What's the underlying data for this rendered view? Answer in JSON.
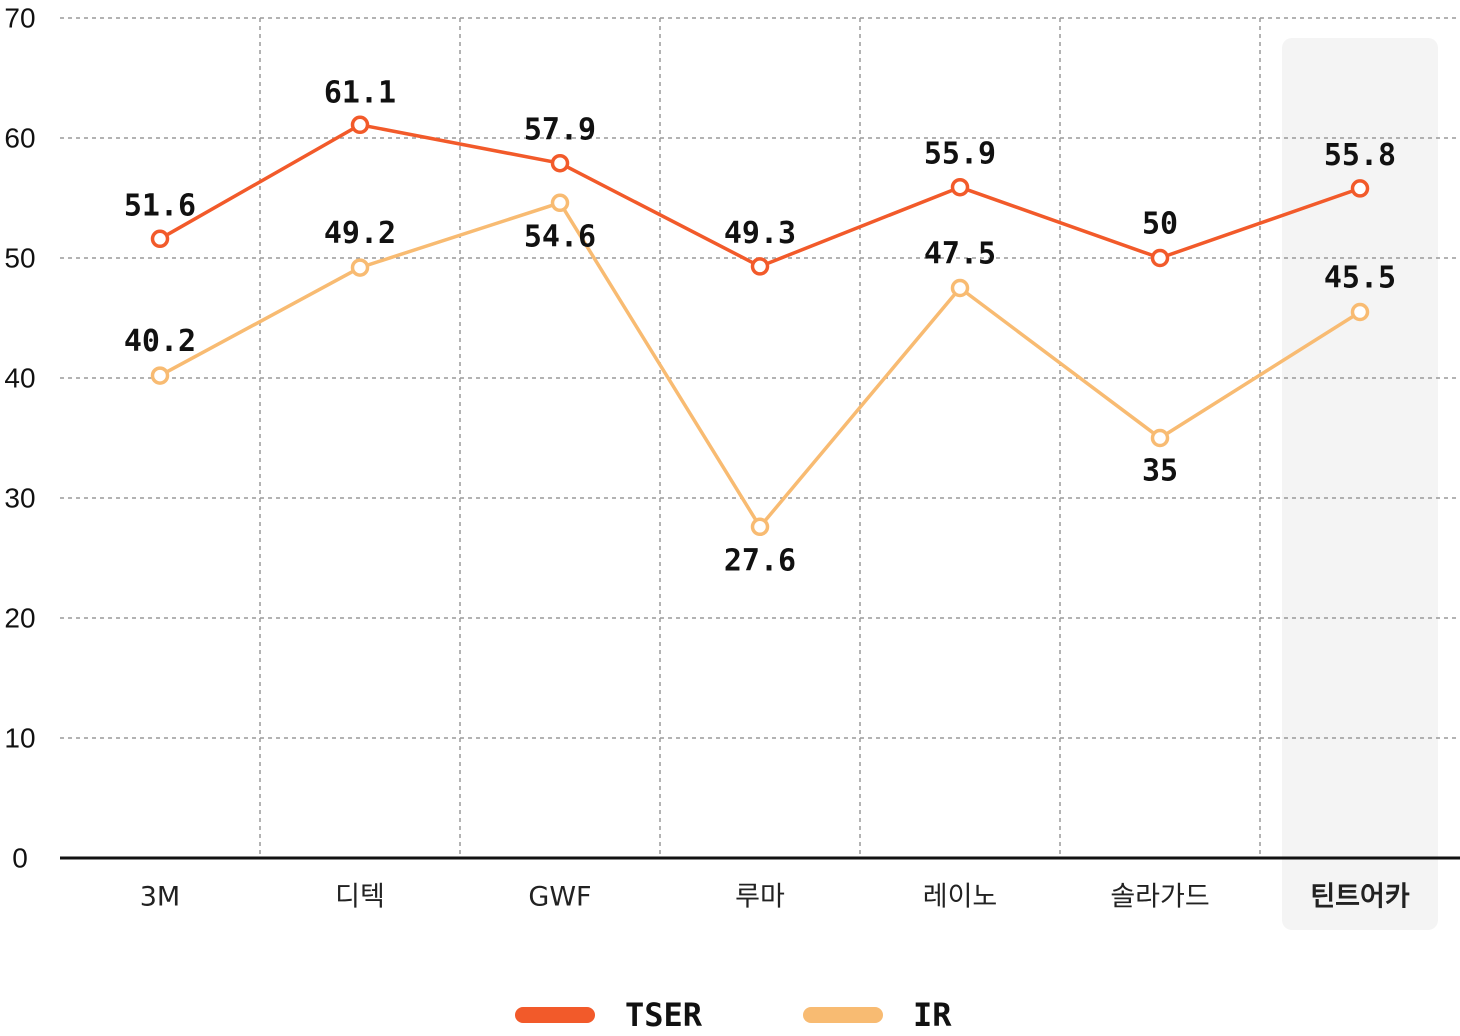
{
  "chart_data": {
    "type": "line",
    "categories": [
      "3M",
      "디텍",
      "GWF",
      "루마",
      "레이노",
      "솔라가드",
      "틴트어카"
    ],
    "highlight_category": "틴트어카",
    "ylim": [
      0,
      70
    ],
    "yticks": [
      0,
      10,
      20,
      30,
      40,
      50,
      60,
      70
    ],
    "grid": true,
    "legend_position": "bottom-center",
    "series": [
      {
        "name": "TSER",
        "color": "#F25A2A",
        "values": [
          51.6,
          61.1,
          57.9,
          49.3,
          55.9,
          50,
          55.8
        ],
        "labels": [
          "51.6",
          "61.1",
          "57.9",
          "49.3",
          "55.9",
          "50",
          "55.8"
        ]
      },
      {
        "name": "IR",
        "color": "#F8BB72",
        "values": [
          40.2,
          49.2,
          54.6,
          27.6,
          47.5,
          35,
          45.5
        ],
        "labels": [
          "40.2",
          "49.2",
          "54.6",
          "27.6",
          "47.5",
          "35",
          "45.5"
        ]
      }
    ],
    "colors": {
      "axis": "#111111",
      "highlight_band": "#F4F4F4",
      "highlight_text": "#E8341C"
    }
  }
}
